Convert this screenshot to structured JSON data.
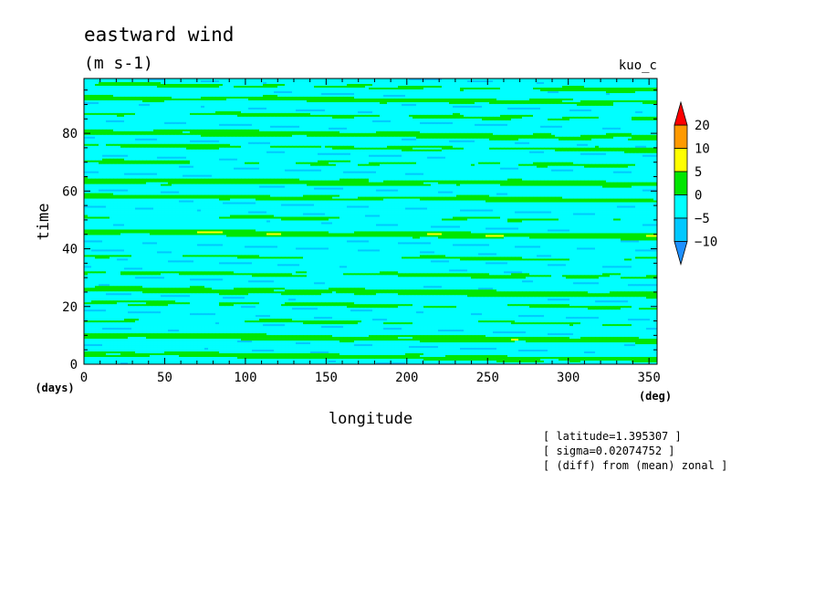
{
  "chart_data": {
    "type": "heatmap",
    "title": "eastward wind",
    "subtitle": "(m s-1)",
    "run_label": "kuo_c",
    "xlabel": "longitude",
    "xunit": "(deg)",
    "ylabel": "time",
    "yunit": "(days)",
    "xlim": [
      0,
      355
    ],
    "ylim": [
      0,
      99
    ],
    "xticks": [
      0,
      50,
      100,
      150,
      200,
      250,
      300,
      350
    ],
    "yticks": [
      0,
      20,
      40,
      60,
      80
    ],
    "colorbar": {
      "levels": [
        -10,
        -5,
        0,
        5,
        10,
        20
      ],
      "labels": [
        "20",
        "10",
        "5",
        "0",
        "−5",
        "−10"
      ],
      "colors": [
        "#1e90ff",
        "#00c8ff",
        "#00ffff",
        "#00e600",
        "#ffff00",
        "#ff9a00",
        "#ff0000"
      ],
      "extend": "both"
    },
    "bands": [
      {
        "t0": 2.5,
        "slope": -0.006,
        "amp": 6.0
      },
      {
        "t0": 9.0,
        "slope": -0.005,
        "amp": 7.0
      },
      {
        "t0": 14.5,
        "slope": -0.0045,
        "amp": 3.5
      },
      {
        "t0": 20.5,
        "slope": -0.005,
        "amp": 4.0
      },
      {
        "t0": 25.0,
        "slope": -0.0055,
        "amp": 7.0
      },
      {
        "t0": 31.0,
        "slope": -0.0045,
        "amp": 4.5
      },
      {
        "t0": 37.0,
        "slope": -0.004,
        "amp": 3.5
      },
      {
        "t0": 45.0,
        "slope": -0.005,
        "amp": 7.5
      },
      {
        "t0": 50.5,
        "slope": -0.004,
        "amp": 3.5
      },
      {
        "t0": 57.5,
        "slope": -0.004,
        "amp": 5.5
      },
      {
        "t0": 63.0,
        "slope": -0.003,
        "amp": 6.5
      },
      {
        "t0": 69.5,
        "slope": -0.004,
        "amp": 3.5
      },
      {
        "t0": 75.0,
        "slope": -0.0045,
        "amp": 4.0
      },
      {
        "t0": 79.5,
        "slope": -0.0055,
        "amp": 6.5
      },
      {
        "t0": 86.0,
        "slope": -0.005,
        "amp": 4.0
      },
      {
        "t0": 91.5,
        "slope": -0.005,
        "amp": 5.5
      },
      {
        "t0": 96.0,
        "slope": -0.006,
        "amp": 4.0
      }
    ]
  },
  "info": [
    "[ latitude=1.395307 ]",
    "[ sigma=0.02074752 ]",
    "[ (diff) from (mean) zonal ]"
  ]
}
